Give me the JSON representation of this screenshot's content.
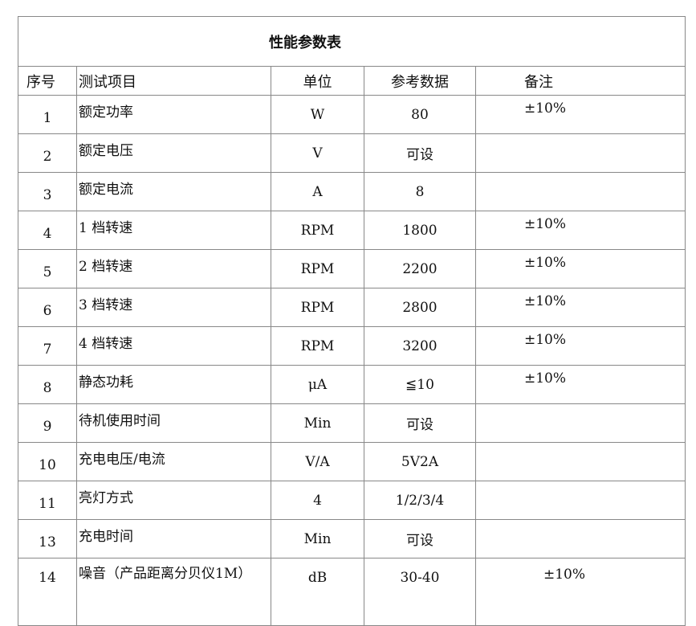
{
  "title": "性能参数表",
  "headers": [
    "序号",
    "测试项目",
    "单位",
    "参考数据",
    "备注"
  ],
  "rows": [
    [
      "1",
      "额定功率",
      "W",
      "80",
      "±10%"
    ],
    [
      "2",
      "额定电压",
      "V",
      "可设",
      ""
    ],
    [
      "3",
      "额定电流",
      "A",
      "8",
      ""
    ],
    [
      "4",
      "1 档转速",
      "RPM",
      "1800",
      "±10%"
    ],
    [
      "5",
      "2 档转速",
      "RPM",
      "2200",
      "±10%"
    ],
    [
      "6",
      "3 档转速",
      "RPM",
      "2800",
      "±10%"
    ],
    [
      "7",
      "4 档转速",
      "RPM",
      "3200",
      "±10%"
    ],
    [
      "8",
      "静态功耗",
      "μA",
      "≦10",
      "±10%"
    ],
    [
      "9",
      "待机使用时间",
      "Min",
      "可设",
      ""
    ],
    [
      "10",
      "充电电压/电流",
      "V/A",
      "5V2A",
      ""
    ],
    [
      "11",
      "亮灯方式",
      "4",
      "1/2/3/4",
      ""
    ],
    [
      "13",
      "充电时间",
      "Min",
      "可设",
      ""
    ],
    [
      "14",
      "噪音（产品距离分贝仪1M）",
      "dB",
      "30-40",
      "±10%"
    ]
  ]
}
